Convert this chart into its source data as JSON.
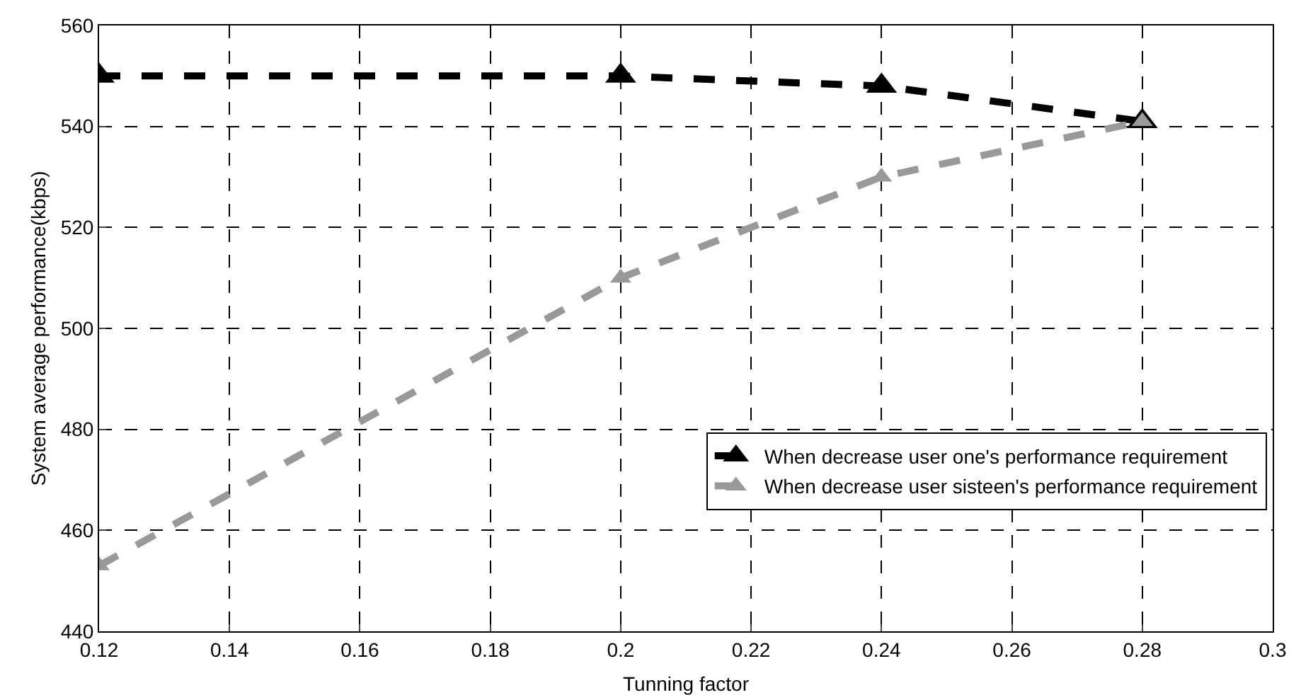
{
  "chart_data": {
    "type": "line",
    "xlabel": "Tunning factor",
    "ylabel": "System average performance(kbps)",
    "x": [
      0.12,
      0.2,
      0.24,
      0.28
    ],
    "series": [
      {
        "name": "When decrease user one's performance requirement",
        "color": "#000000",
        "values": [
          550,
          550,
          548,
          541
        ]
      },
      {
        "name": "When decrease user sisteen's performance requirement",
        "color": "#999999",
        "values": [
          453,
          510,
          530,
          541
        ]
      }
    ],
    "xlim": [
      0.12,
      0.3
    ],
    "xticks": [
      0.12,
      0.14,
      0.16,
      0.18,
      0.2,
      0.22,
      0.24,
      0.26,
      0.28,
      0.3
    ],
    "ylim": [
      440,
      560
    ],
    "yticks": [
      440,
      460,
      480,
      500,
      520,
      540,
      560
    ],
    "grid": true,
    "legend": "bottom right",
    "marker": "triangle",
    "line_style": "dashed"
  }
}
